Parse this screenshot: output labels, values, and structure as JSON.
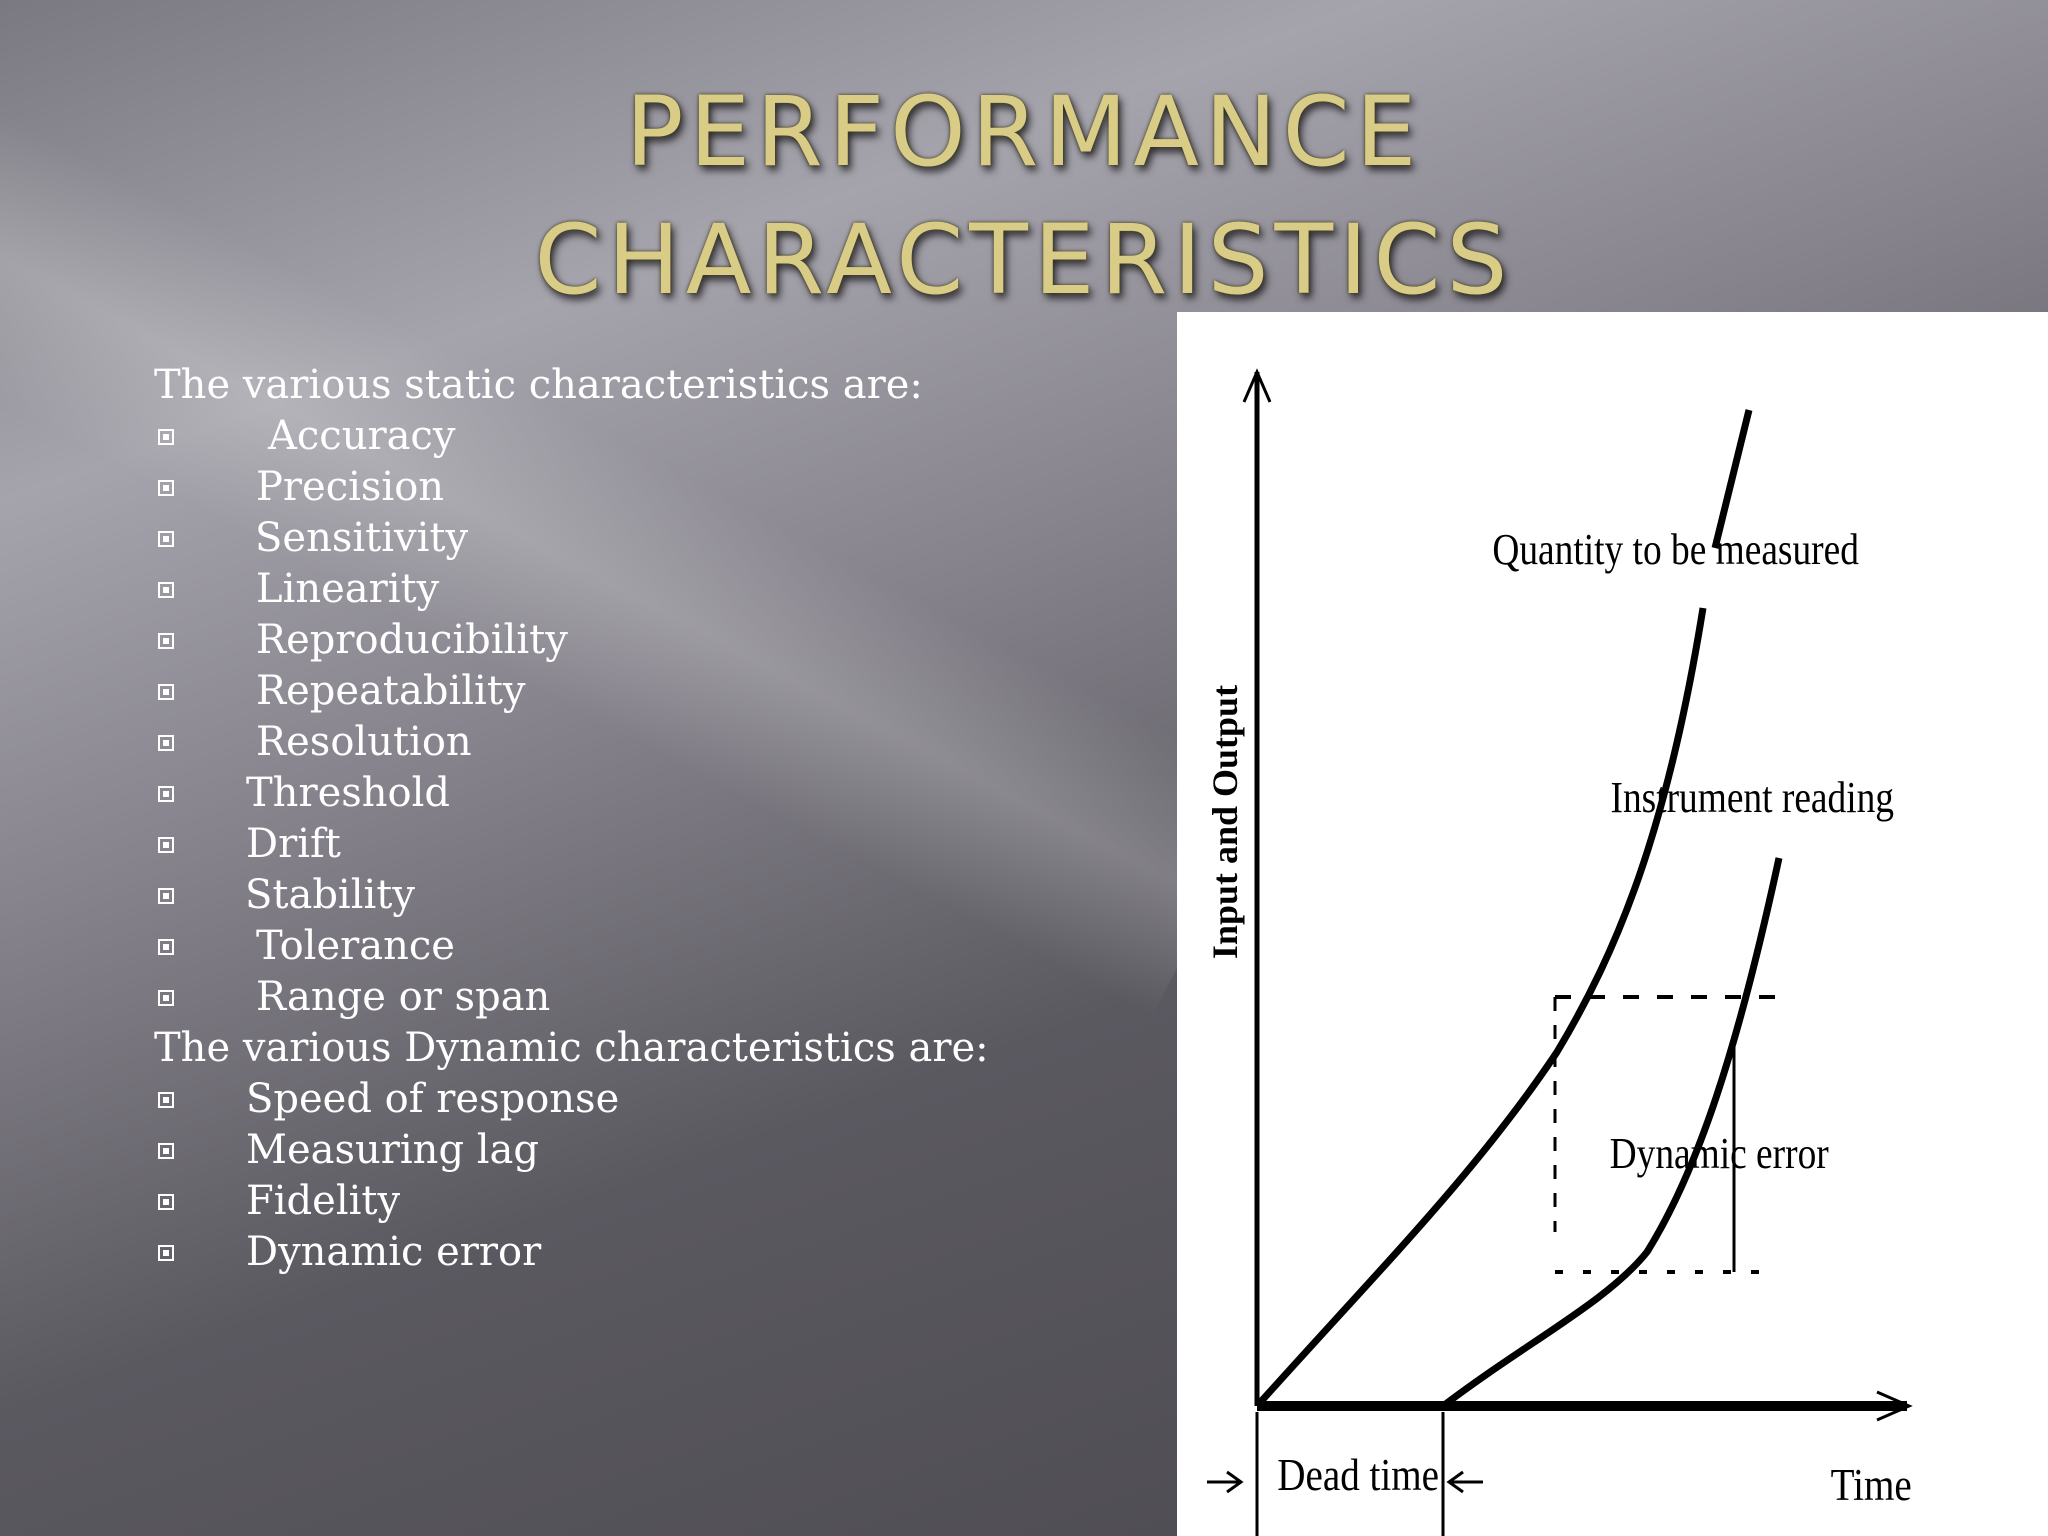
{
  "slide": {
    "title_lines": [
      "PERFORMANCE",
      "CHARACTERISTICS"
    ],
    "static_heading": "The various static characteristics are:",
    "static_items": [
      "Accuracy",
      "Precision",
      "Sensitivity",
      "Linearity",
      "Reproducibility",
      "Repeatability",
      "Resolution",
      "Threshold",
      "Drift",
      "Stability",
      "Tolerance",
      "Range or span"
    ],
    "dynamic_heading": "The various Dynamic characteristics are:",
    "dynamic_items": [
      "Speed of response",
      "Measuring lag",
      "Fidelity",
      "Dynamic error"
    ],
    "bullet_icon": "boxed-square-bullet"
  },
  "figure": {
    "y_axis_label": "Input and Output",
    "x_axis_label": "Time",
    "curve_labels": {
      "quantity": "Quantity to be measured",
      "instrument": "Instrument reading"
    },
    "annotations": {
      "dynamic_error": "Dynamic error",
      "dead_time": "Dead time"
    }
  }
}
